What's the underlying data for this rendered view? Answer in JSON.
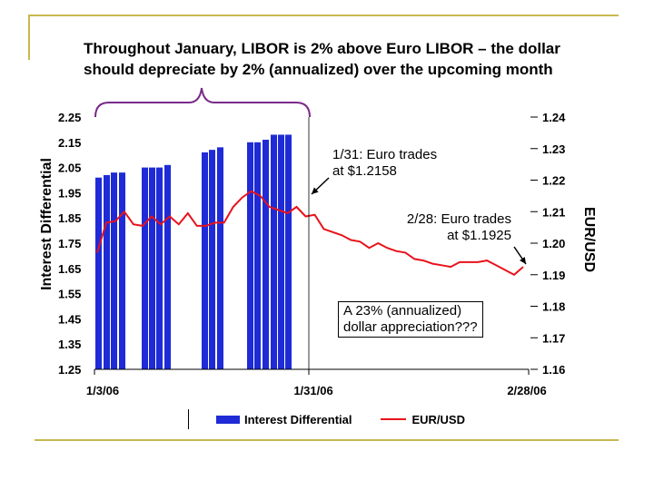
{
  "page": {
    "title_line1": "Throughout January, LIBOR is 2% above Euro LIBOR – the dollar",
    "title_line2": "should depreciate by 2% (annualized) over the upcoming month"
  },
  "chart_data": {
    "type": "bar+line",
    "ylabel": "Interest Differential",
    "y2label": "EUR/USD",
    "ylim": [
      1.25,
      2.25
    ],
    "y2lim": [
      1.16,
      1.24
    ],
    "yticks": [
      "2.25",
      "2.15",
      "2.05",
      "1.95",
      "1.85",
      "1.75",
      "1.65",
      "1.55",
      "1.45",
      "1.35",
      "1.25"
    ],
    "y2ticks": [
      "1.24",
      "1.23",
      "1.22",
      "1.21",
      "1.20",
      "1.19",
      "1.18",
      "1.17",
      "1.16"
    ],
    "xticks": [
      "1/3/06",
      "1/31/06",
      "2/28/06"
    ],
    "series": [
      {
        "name": "Interest Differential",
        "kind": "bar",
        "color": "#1e2bd6",
        "values": [
          2.01,
          2.02,
          2.03,
          2.03,
          2.05,
          2.05,
          2.05,
          2.06,
          2.11,
          2.12,
          2.13,
          2.15,
          2.15,
          2.16,
          2.18,
          2.18,
          2.18
        ]
      },
      {
        "name": "EUR/USD",
        "kind": "line",
        "color": "#e8121b",
        "values": [
          1.197,
          1.2065,
          1.207,
          1.21,
          1.206,
          1.2055,
          1.2085,
          1.206,
          1.2085,
          1.206,
          1.2095,
          1.2055,
          1.2055,
          1.2065,
          1.2065,
          1.2115,
          1.2145,
          1.2165,
          1.215,
          1.2115,
          1.2105,
          1.2095,
          1.2115,
          1.2085,
          1.209,
          1.2045,
          1.2035,
          1.2025,
          1.201,
          1.2005,
          1.1985,
          1.2,
          1.1985,
          1.1975,
          1.197,
          1.195,
          1.1945,
          1.1935,
          1.193,
          1.1925,
          1.194,
          1.194,
          1.194,
          1.1945,
          1.193,
          1.1915,
          1.19,
          1.1925
        ]
      }
    ],
    "annotations": [
      {
        "text_line1": "1/31: Euro trades",
        "text_line2": "at $1.2158"
      },
      {
        "text_line1": "2/28: Euro trades",
        "text_line2": "at $1.1925"
      },
      {
        "text_line1": "A 23% (annualized)",
        "text_line2": "dollar appreciation???"
      }
    ],
    "legend": {
      "bar_label": "Interest Differential",
      "line_label": "EUR/USD"
    }
  }
}
